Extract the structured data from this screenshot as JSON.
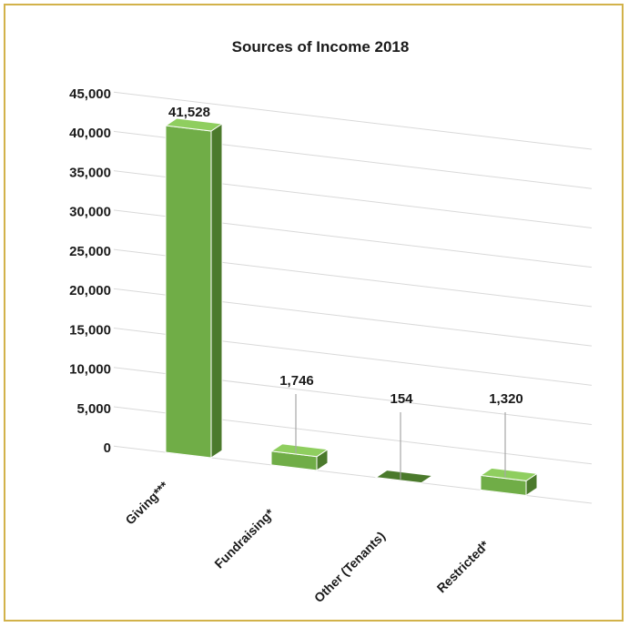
{
  "chart_data": {
    "type": "bar",
    "title": "Sources of Income 2018",
    "categories": [
      "Giving***",
      "Fundraising*",
      "Other (Tenants)",
      "Restricted*"
    ],
    "values": [
      41528,
      1746,
      154,
      1320
    ],
    "data_labels": [
      "41,528",
      "1,746",
      "154",
      "1,320"
    ],
    "y_ticks": [
      "0",
      "5,000",
      "10,000",
      "15,000",
      "20,000",
      "25,000",
      "30,000",
      "35,000",
      "40,000",
      "45,000"
    ],
    "ylim": [
      0,
      45000
    ],
    "grid": true,
    "style": "3d-column",
    "legend": "none",
    "colors": {
      "front": "#70ad47",
      "side": "#4b7a2c",
      "top": "#8fce5f",
      "frame": "#d2b24a"
    }
  }
}
